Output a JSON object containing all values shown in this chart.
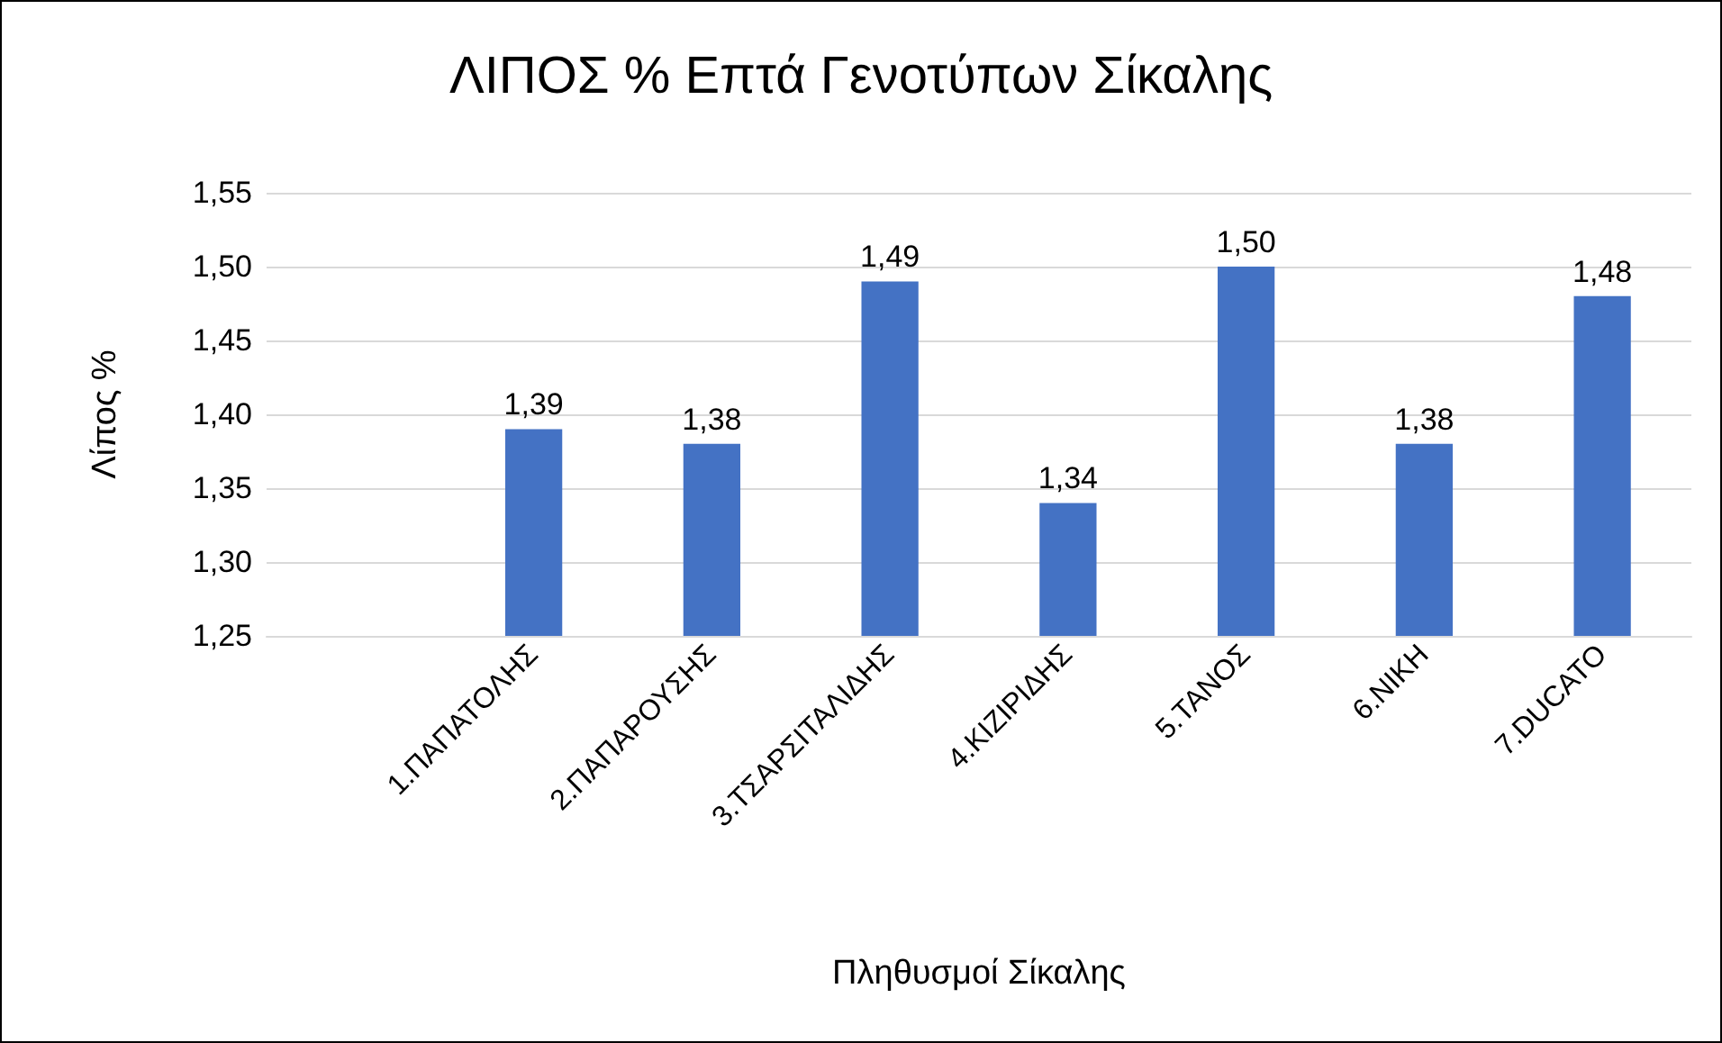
{
  "chart_data": {
    "type": "bar",
    "title": "ΛΙΠΟΣ % Επτά Γενοτύπων Σίκαλης",
    "xlabel": "Πληθυσμοί Σίκαλης",
    "ylabel": "Λίπος %",
    "categories": [
      null,
      "1.ΠΑΠΑΤΟΛΗΣ",
      "2.ΠΑΠΑΡΟΥΣΗΣ",
      "3.ΤΣΑΡΣΙΤΑΛΙΔΗΣ",
      "4.ΚΙΖΙΡΙΔΗΣ",
      "5.ΤΑΝΟΣ",
      "6.ΝΙΚΗ",
      "7.DUCATO"
    ],
    "values": [
      null,
      1.39,
      1.38,
      1.49,
      1.34,
      1.5,
      1.38,
      1.48
    ],
    "value_labels": [
      null,
      "1,39",
      "1,38",
      "1,49",
      "1,34",
      "1,50",
      "1,38",
      "1,48"
    ],
    "color": "#4472c4",
    "ylim": [
      1.25,
      1.55
    ],
    "yticks": [
      {
        "value": 1.25,
        "label": "1,25"
      },
      {
        "value": 1.3,
        "label": "1,30"
      },
      {
        "value": 1.35,
        "label": "1,35"
      },
      {
        "value": 1.4,
        "label": "1,40"
      },
      {
        "value": 1.45,
        "label": "1,45"
      },
      {
        "value": 1.5,
        "label": "1,50"
      },
      {
        "value": 1.55,
        "label": "1,55"
      }
    ],
    "grid": "y"
  }
}
